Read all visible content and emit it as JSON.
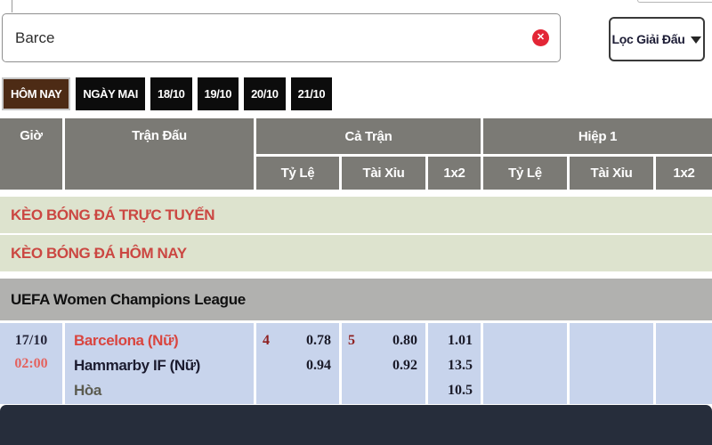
{
  "header": {
    "search": {
      "value": "Barce",
      "clear_icon": "✕"
    },
    "filter": {
      "label": "Lọc Giải Đấu"
    }
  },
  "date_tabs": [
    {
      "label": "HÔM NAY",
      "active": true
    },
    {
      "label": "NGÀY MAI",
      "active": false
    },
    {
      "label": "18/10",
      "active": false
    },
    {
      "label": "19/10",
      "active": false
    },
    {
      "label": "20/10",
      "active": false
    },
    {
      "label": "21/10",
      "active": false
    }
  ],
  "odds_table": {
    "col_time": "Giờ",
    "col_match": "Trận Đấu",
    "group_full_time": "Cả Trận",
    "group_first_half": "Hiệp 1",
    "col_handicap": "Tỷ Lệ",
    "col_over_under": "Tài Xỉu",
    "col_1x2": "1x2"
  },
  "sections": {
    "live": "KÈO BÓNG ĐÁ TRỰC TUYẾN",
    "today": "KÈO BÓNG ĐÁ HÔM NAY"
  },
  "league": "UEFA Women Champions League",
  "match": {
    "date": "17/10",
    "time": "02:00",
    "home_team": "Barcelona (Nữ)",
    "away_team": "Hammarby IF (Nữ)",
    "draw_label": "Hòa",
    "full_time": {
      "handicap_line": "4",
      "handicap_home": "0.78",
      "handicap_away": "0.94",
      "ou_line": "5",
      "ou_over": "0.80",
      "ou_under": "0.92",
      "x2_home": "1.01",
      "x2_away": "13.5",
      "x2_draw": "10.5"
    }
  },
  "colors": {
    "accent_red": "#cb4742",
    "team_red": "#d9453f",
    "time_red": "#e4635f",
    "line_maroon": "#8e1f1f",
    "row_blue": "#c8d4ec",
    "header_gray": "#7b7a75",
    "league_gray": "#b1b1af",
    "section_green": "#dde3ce",
    "tab_black": "#0c0c0c",
    "tab_active_brown": "#4d2b15",
    "clear_red": "#e32636",
    "footer_navy": "#262d3b"
  }
}
